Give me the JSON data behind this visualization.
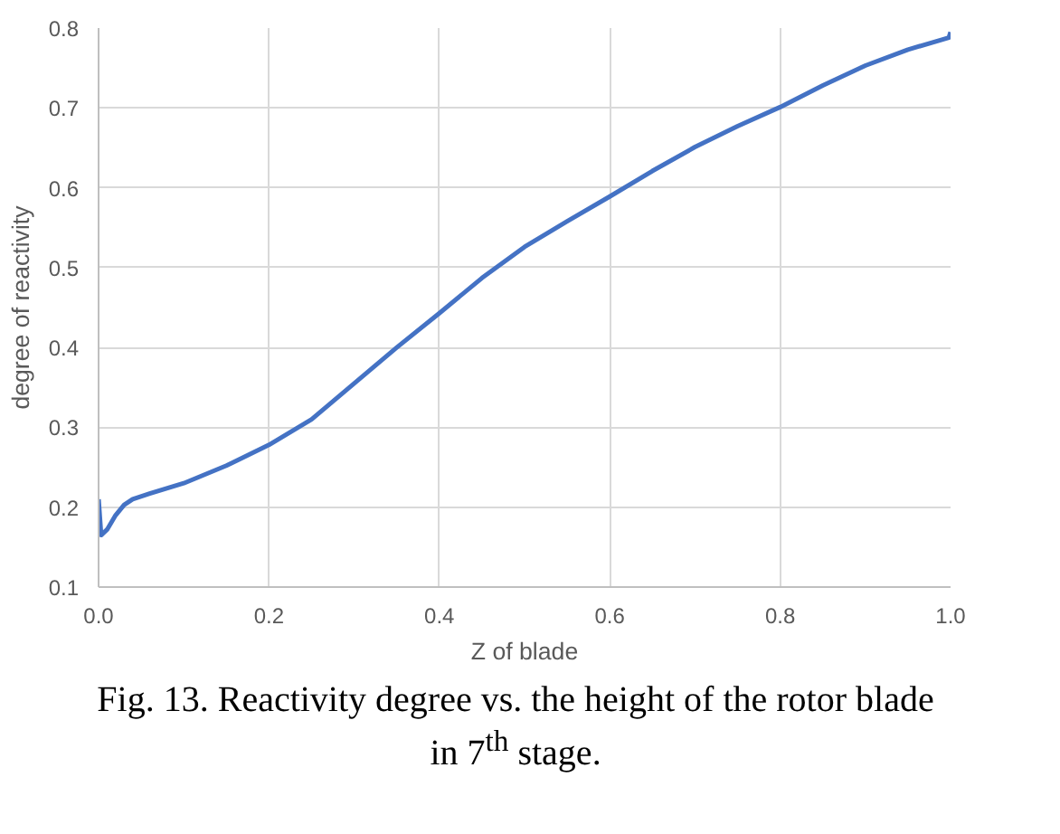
{
  "chart_data": {
    "type": "line",
    "xlabel": "Z of blade",
    "ylabel": "degree of reactivity",
    "annotations": [
      "Fig. 13. Reactivity degree vs. the height of the rotor blade in 7$^{th}$ stage."
    ],
    "series": [
      {
        "color": "#4472c4",
        "x": [
          0.0,
          0.003,
          0.01,
          0.02,
          0.03,
          0.04,
          0.06,
          0.1,
          0.15,
          0.2,
          0.25,
          0.3,
          0.35,
          0.4,
          0.45,
          0.5,
          0.55,
          0.6,
          0.65,
          0.7,
          0.75,
          0.8,
          0.85,
          0.9,
          0.95,
          0.998,
          1.0
        ],
        "values": [
          0.21,
          0.165,
          0.172,
          0.19,
          0.203,
          0.21,
          0.217,
          0.23,
          0.252,
          0.278,
          0.31,
          0.355,
          0.4,
          0.443,
          0.487,
          0.526,
          0.558,
          0.589,
          0.621,
          0.651,
          0.677,
          0.701,
          0.728,
          0.753,
          0.773,
          0.788,
          0.795
        ]
      }
    ],
    "xlim": [
      0.0,
      1.0
    ],
    "xticks": [
      {
        "value": 0,
        "label": "0.0"
      },
      0.2,
      0.4,
      0.6,
      0.8,
      {
        "value": 1,
        "label": "1.0"
      }
    ],
    "ylim": [
      0.1,
      0.8
    ],
    "yticks": [
      0.1,
      0.2,
      0.3,
      0.4,
      0.5,
      0.6,
      0.7,
      0.8
    ],
    "grid": true,
    "line_style": "solid"
  }
}
